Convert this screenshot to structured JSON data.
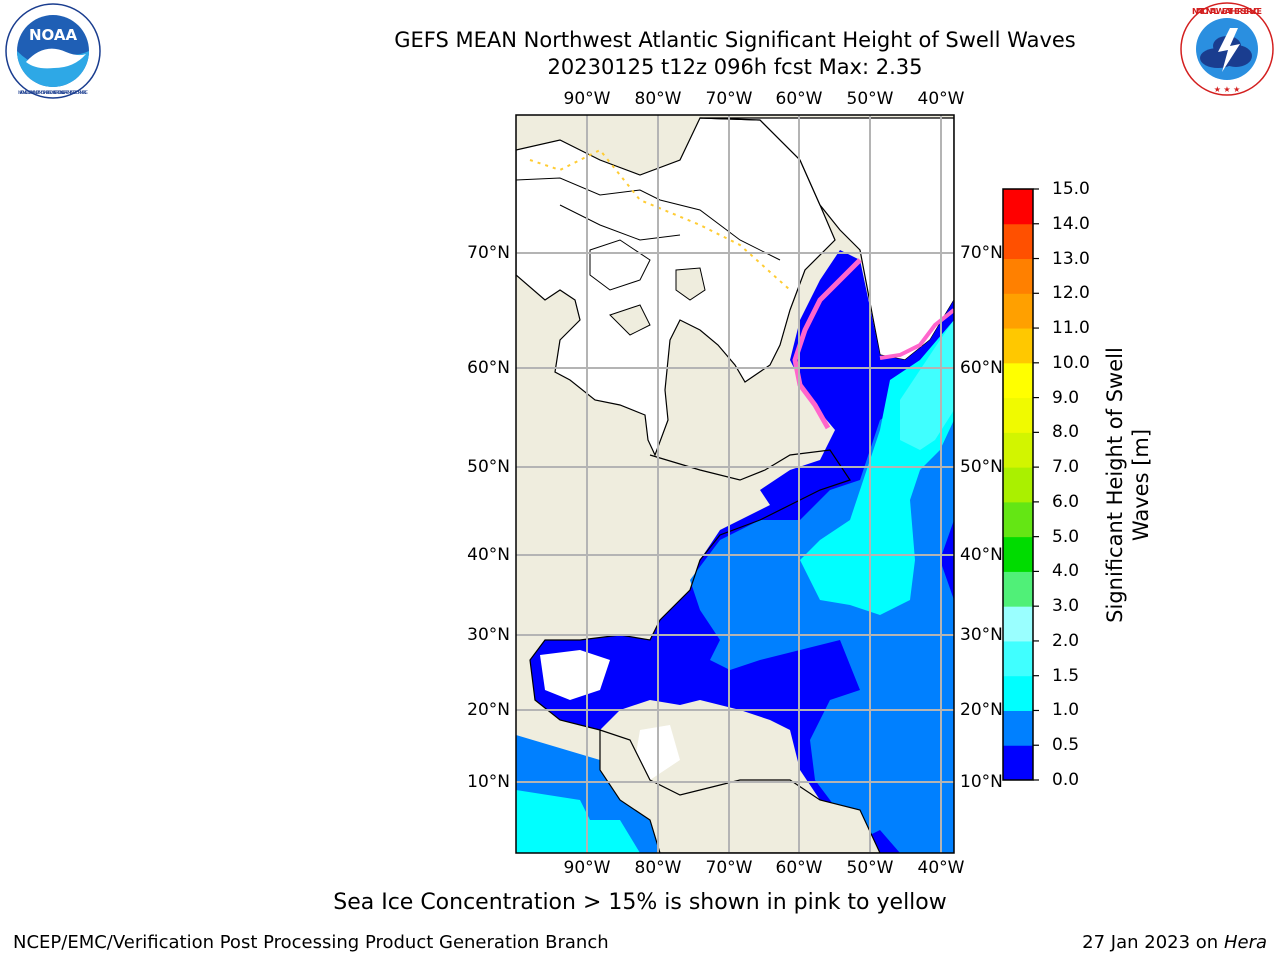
{
  "header": {
    "title_line1": "GEFS MEAN Northwest Atlantic Significant Height of Swell Waves",
    "title_line2": "20230125 t12z 096h fcst   Max: 2.35"
  },
  "logos": {
    "noaa_text": "NOAA",
    "noaa_ring_text": "NATIONAL OCEANIC AND ATMOSPHERIC ADMINISTRATION · U.S. DEPARTMENT OF COMMERCE",
    "nws_ring_text": "NATIONAL WEATHER SERVICE"
  },
  "map": {
    "lon_labels": [
      "90°W",
      "80°W",
      "70°W",
      "60°W",
      "50°W",
      "40°W"
    ],
    "lat_labels": [
      "70°N",
      "60°N",
      "50°N",
      "40°N",
      "30°N",
      "20°N",
      "10°N"
    ],
    "colors": {
      "land": "#efedde",
      "ice_free_white": "#ffffff",
      "grid": "#b4b4b4",
      "sea_ice": [
        "#ff66cc",
        "#ff9999",
        "#ffcc33"
      ]
    }
  },
  "colorbar": {
    "title": "Significant Height of Swell Waves [m]",
    "ticks": [
      "15.0",
      "14.0",
      "13.0",
      "12.0",
      "11.0",
      "10.0",
      "9.0",
      "8.0",
      "7.0",
      "6.0",
      "5.0",
      "4.0",
      "3.0",
      "2.0",
      "1.5",
      "1.0",
      "0.5",
      "0.0"
    ],
    "bins": [
      {
        "range": "0.0-0.5",
        "color": "#0000ff"
      },
      {
        "range": "0.5-1.0",
        "color": "#0080ff"
      },
      {
        "range": "1.0-1.5",
        "color": "#00ffff"
      },
      {
        "range": "1.5-2.0",
        "color": "#40ffff"
      },
      {
        "range": "2.0-3.0",
        "color": "#9affff"
      },
      {
        "range": "3.0-4.0",
        "color": "#50f078"
      },
      {
        "range": "4.0-5.0",
        "color": "#00dc00"
      },
      {
        "range": "5.0-6.0",
        "color": "#64e614"
      },
      {
        "range": "6.0-7.0",
        "color": "#aaf000"
      },
      {
        "range": "7.0-8.0",
        "color": "#d2f500"
      },
      {
        "range": "8.0-9.0",
        "color": "#f0fa00"
      },
      {
        "range": "9.0-10.0",
        "color": "#ffff00"
      },
      {
        "range": "10.0-11.0",
        "color": "#ffc800"
      },
      {
        "range": "11.0-12.0",
        "color": "#ffa000"
      },
      {
        "range": "12.0-13.0",
        "color": "#ff8000"
      },
      {
        "range": "13.0-14.0",
        "color": "#ff5000"
      },
      {
        "range": "14.0-15.0",
        "color": "#ff0000"
      }
    ]
  },
  "note": "Sea Ice Concentration > 15% is shown in pink to yellow",
  "footer": {
    "left": "NCEP/EMC/Verification Post Processing Product Generation Branch",
    "right_prefix": "27 Jan 2023 on ",
    "right_machine": "Hera"
  }
}
